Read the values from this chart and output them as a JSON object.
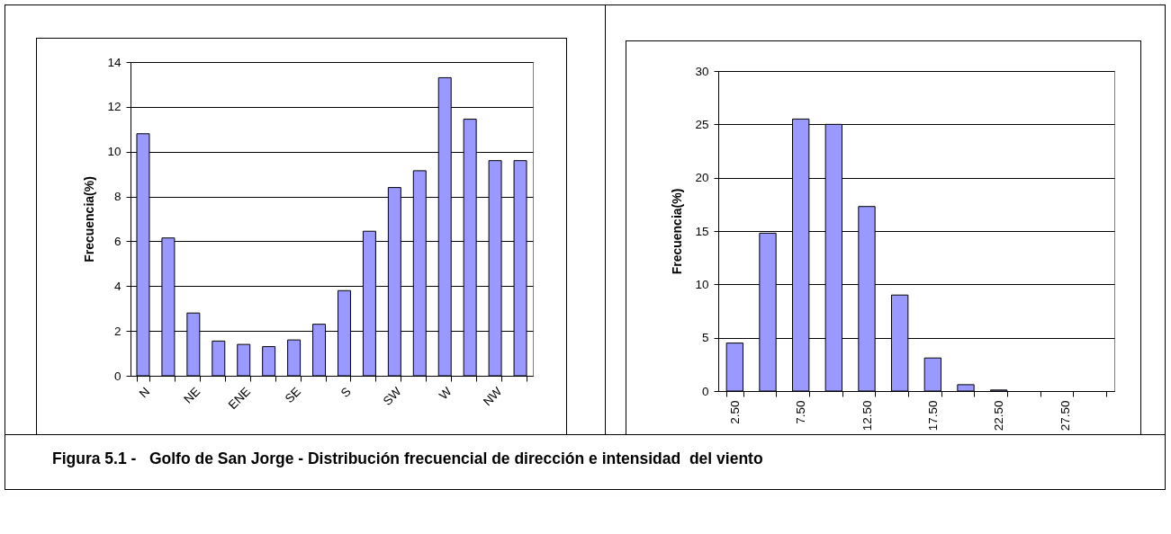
{
  "chart_data": [
    {
      "type": "bar",
      "ylabel": "Frecuencia(%)",
      "categories": [
        "N",
        null,
        "NE",
        null,
        "ENE",
        null,
        "SE",
        null,
        "S",
        null,
        "SW",
        null,
        "W",
        null,
        "NW",
        null
      ],
      "values": [
        10.8,
        6.15,
        2.8,
        1.55,
        1.4,
        1.3,
        1.6,
        2.3,
        3.8,
        6.45,
        8.4,
        9.15,
        13.3,
        11.45,
        9.6,
        9.6
      ],
      "color": "#9999ff",
      "ylim": [
        0,
        14
      ],
      "yticks": [
        0,
        2,
        4,
        6,
        8,
        10,
        12,
        14
      ],
      "grid": "y",
      "annotations": [
        "Figura 5.1 -   Golfo de San Jorge - Distribución frecuencial de dirección e intensidad  del viento"
      ]
    },
    {
      "type": "bar",
      "ylabel": "Frecuencia(%)",
      "categories": [
        "2.50",
        null,
        "7.50",
        null,
        "12.50",
        null,
        "17.50",
        null,
        "22.50",
        null,
        "27.50",
        null
      ],
      "values": [
        4.5,
        14.8,
        25.5,
        25,
        17.3,
        9,
        3.1,
        0.6,
        0.1,
        0,
        0,
        0
      ],
      "color": "#9999ff",
      "ylim": [
        0,
        30
      ],
      "yticks": [
        0,
        5,
        10,
        15,
        20,
        25,
        30
      ],
      "grid": "y"
    }
  ]
}
